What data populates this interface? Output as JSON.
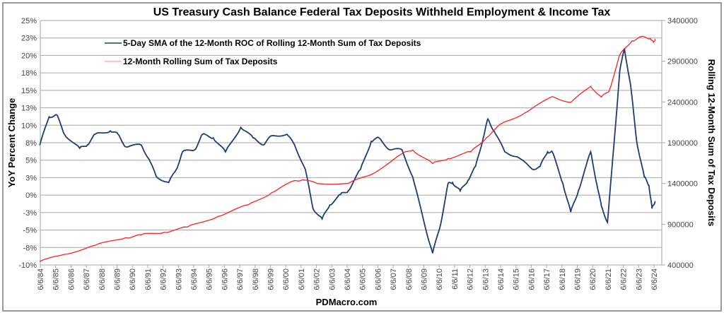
{
  "chart_data": {
    "type": "line",
    "title": "US Treasury Cash Balance Federal Tax Deposits Withheld Employment & Income Tax",
    "xlabel": "PDMacro.com",
    "ylabel": "YoY Percent Change",
    "y2label": "Rolling 12-Month Sum of Tax Deposits",
    "legend_position": "top-left",
    "grid": true,
    "xlim": [
      1984.43,
      2024.43
    ],
    "ylim": [
      -10,
      25
    ],
    "y2lim": [
      400000,
      3400000
    ],
    "x_tick_labels": [
      "6/6/84",
      "6/6/85",
      "6/6/86",
      "6/6/87",
      "6/6/88",
      "6/6/89",
      "6/6/90",
      "6/6/91",
      "6/6/92",
      "6/6/93",
      "6/6/94",
      "6/6/95",
      "6/6/96",
      "6/6/97",
      "6/6/98",
      "6/6/99",
      "6/6/00",
      "6/6/01",
      "6/6/02",
      "6/6/03",
      "6/6/04",
      "6/6/05",
      "6/6/06",
      "6/6/07",
      "6/6/08",
      "6/6/09",
      "6/6/10",
      "6/6/11",
      "6/6/12",
      "6/6/13",
      "6/6/14",
      "6/6/15",
      "6/6/16",
      "6/6/17",
      "6/6/18",
      "6/6/19",
      "6/6/20",
      "6/6/21",
      "6/6/22",
      "6/6/23",
      "6/6/24"
    ],
    "y_tick_labels": [
      "-10%",
      "-8%",
      "-5%",
      "-3%",
      "0%",
      "3%",
      "5%",
      "8%",
      "10%",
      "13%",
      "15%",
      "18%",
      "20%",
      "23%",
      "25%"
    ],
    "y2_tick_labels": [
      "400000",
      "900000",
      "1400000",
      "1900000",
      "2400000",
      "2900000",
      "3400000"
    ],
    "series": [
      {
        "name": "5-Day SMA of the 12-Month ROC of Rolling 12-Month Sum of Tax Deposits",
        "axis": "left",
        "color": "#1f3a75",
        "x": [
          1984.4,
          1985,
          1985.5,
          1986,
          1987,
          1987.5,
          1988,
          1989,
          1989.5,
          1990,
          1991,
          1991.5,
          1992,
          1992.8,
          1993.3,
          1993.7,
          1994.5,
          1995,
          1995.7,
          1996.5,
          1997.5,
          1998.3,
          1999,
          1999.5,
          2000.5,
          2001,
          2001.7,
          2002.2,
          2002.8,
          2003.3,
          2004,
          2004.5,
          2005.3,
          2006,
          2006.5,
          2007.2,
          2008,
          2008.7,
          2009.5,
          2010,
          2010.5,
          2011,
          2011.3,
          2011.8,
          2012.3,
          2012.8,
          2013.3,
          2013.6,
          2014,
          2014.7,
          2015.5,
          2016.5,
          2017,
          2017.5,
          2017.8,
          2018.5,
          2019,
          2019.5,
          2020.3,
          2020.7,
          2021,
          2021.4,
          2021.8,
          2022.2,
          2022.5,
          2022.9,
          2023.3,
          2023.8,
          2024.1,
          2024.3,
          2024.5
        ],
        "y": [
          7.2,
          11.2,
          11.5,
          8.7,
          6.7,
          7.2,
          8.7,
          9.2,
          8.7,
          6.9,
          7.2,
          5.2,
          2.6,
          1.8,
          3.7,
          6.2,
          6.5,
          8.7,
          8.2,
          6.2,
          9.7,
          8.2,
          7.2,
          8.5,
          8.7,
          7.2,
          3.7,
          -1.9,
          -3.4,
          -1.4,
          0.1,
          0.6,
          3.7,
          7.7,
          8.2,
          6.5,
          6.5,
          2.6,
          -4.4,
          -8.3,
          -4.4,
          1.6,
          1.8,
          0.6,
          2.1,
          4.1,
          8.2,
          10.9,
          9.2,
          6.2,
          5.5,
          3.7,
          4.1,
          6.2,
          6.2,
          1.6,
          -2.4,
          0.6,
          6.2,
          1.6,
          -1.6,
          -3.9,
          6.7,
          17.8,
          21.0,
          15.8,
          7.7,
          2.6,
          1.4,
          -1.9,
          -0.9
        ]
      },
      {
        "name": "12-Month Rolling Sum of Tax Deposits",
        "axis": "right",
        "color": "#ff2020",
        "x": [
          1984.4,
          1986,
          1988,
          1990,
          1991,
          1992.5,
          1994,
          1996,
          1998,
          1999.5,
          2001,
          2001.5,
          2002.5,
          2004.5,
          2006,
          2008,
          2008.7,
          2010,
          2011,
          2012.5,
          2013.5,
          2014.5,
          2016,
          2017.8,
          2019,
          2020.3,
          2021,
          2021.5,
          2022.2,
          2023,
          2023.6,
          2024.2,
          2024.4,
          2024.5
        ],
        "y": [
          443000,
          530000,
          640000,
          735000,
          770000,
          800000,
          865000,
          995000,
          1140000,
          1285000,
          1435000,
          1445000,
          1400000,
          1400000,
          1510000,
          1765000,
          1810000,
          1645000,
          1705000,
          1790000,
          1960000,
          2135000,
          2265000,
          2465000,
          2395000,
          2590000,
          2460000,
          2530000,
          2980000,
          3150000,
          3200000,
          3180000,
          3130000,
          3170000
        ]
      }
    ]
  }
}
